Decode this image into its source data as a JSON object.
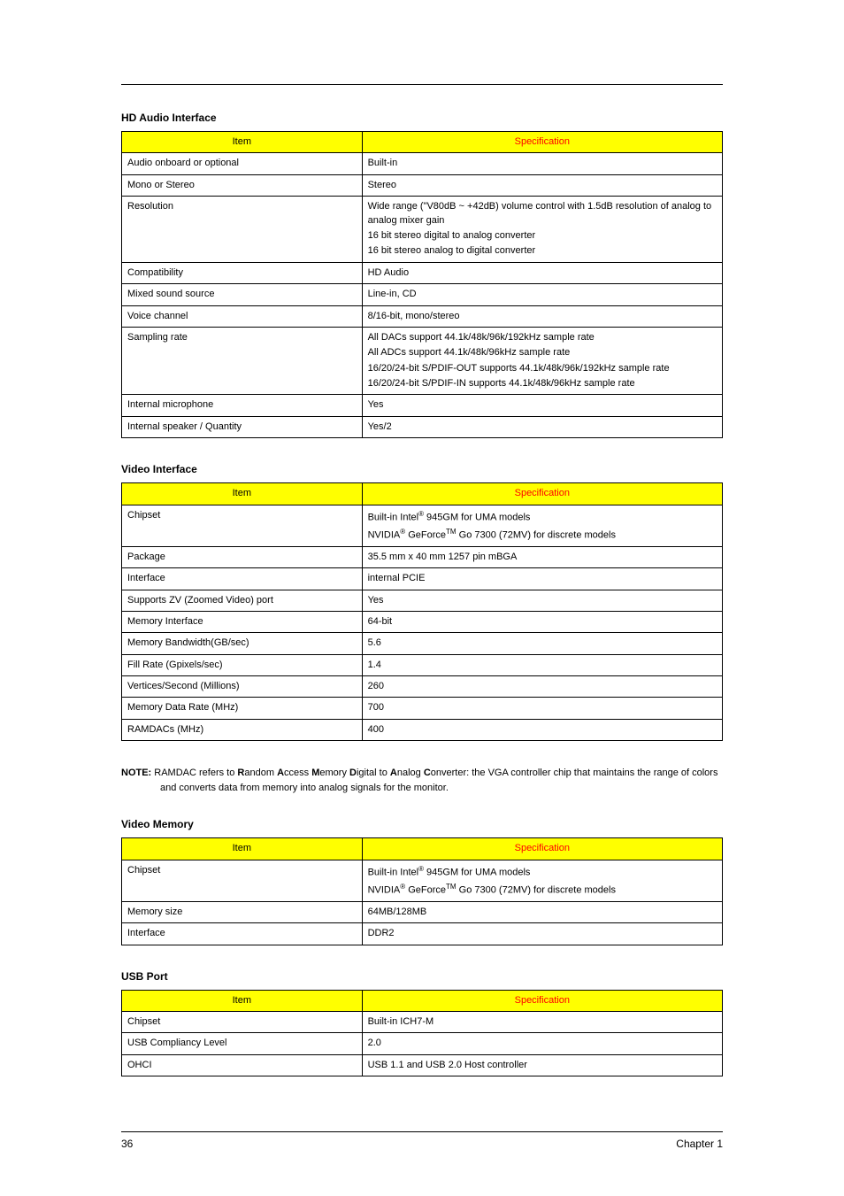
{
  "page": {
    "number": "36",
    "chapter": "Chapter 1"
  },
  "tables": {
    "hd_audio": {
      "title": "HD Audio Interface",
      "header_item": "Item",
      "header_spec": "Specification",
      "rows": [
        {
          "item": "Audio onboard or optional",
          "spec": "Built-in"
        },
        {
          "item": "Mono or Stereo",
          "spec": "Stereo"
        },
        {
          "item": "Resolution",
          "spec_lines": [
            "Wide range (\"V80dB ~ +42dB) volume control with 1.5dB resolution of analog to analog mixer gain",
            "16 bit stereo digital to analog converter",
            "16 bit stereo analog to digital converter"
          ]
        },
        {
          "item": "Compatibility",
          "spec": "HD Audio"
        },
        {
          "item": "Mixed sound source",
          "spec": "Line-in, CD"
        },
        {
          "item": "Voice channel",
          "spec": "8/16-bit, mono/stereo"
        },
        {
          "item": "Sampling rate",
          "spec_lines": [
            "All DACs support 44.1k/48k/96k/192kHz sample rate",
            "All ADCs support 44.1k/48k/96kHz sample rate",
            "16/20/24-bit S/PDIF-OUT supports 44.1k/48k/96k/192kHz sample rate",
            "16/20/24-bit S/PDIF-IN supports 44.1k/48k/96kHz sample rate"
          ]
        },
        {
          "item": "Internal microphone",
          "spec": "Yes"
        },
        {
          "item": "Internal speaker / Quantity",
          "spec": "Yes/2"
        }
      ]
    },
    "video_interface": {
      "title": "Video Interface",
      "header_item": "Item",
      "header_spec": "Specification",
      "rows": [
        {
          "item": "Chipset",
          "spec_html": true,
          "spec_lines": [
            "Built-in Intel<sup>®</sup> 945GM for UMA models",
            "NVIDIA<sup>®</sup> GeForce<sup>TM</sup> Go 7300 (72MV) for discrete models"
          ]
        },
        {
          "item": "Package",
          "spec": "35.5 mm x 40 mm 1257 pin mBGA"
        },
        {
          "item": "Interface",
          "spec": "internal PCIE"
        },
        {
          "item": "Supports ZV (Zoomed Video) port",
          "spec": "Yes"
        },
        {
          "item": "Memory Interface",
          "spec": "64-bit"
        },
        {
          "item": "Memory Bandwidth(GB/sec)",
          "spec": "5.6"
        },
        {
          "item": "Fill Rate (Gpixels/sec)",
          "spec": "1.4"
        },
        {
          "item": "Vertices/Second (Millions)",
          "spec": "260"
        },
        {
          "item": "Memory Data Rate (MHz)",
          "spec": "700"
        },
        {
          "item": "RAMDACs (MHz)",
          "spec": "400"
        }
      ]
    },
    "video_memory": {
      "title": "Video Memory",
      "header_item": "Item",
      "header_spec": "Specification",
      "rows": [
        {
          "item": "Chipset",
          "spec_html": true,
          "spec_lines": [
            "Built-in Intel<sup>®</sup> 945GM for UMA models",
            "NVIDIA<sup>®</sup> GeForce<sup>TM</sup> Go 7300 (72MV) for discrete models"
          ]
        },
        {
          "item": "Memory size",
          "spec": "64MB/128MB"
        },
        {
          "item": "Interface",
          "spec": "DDR2"
        }
      ]
    },
    "usb_port": {
      "title": "USB Port",
      "header_item": "Item",
      "header_spec": "Specification",
      "rows": [
        {
          "item": "Chipset",
          "spec": "Built-in ICH7-M"
        },
        {
          "item": "USB Compliancy Level",
          "spec": "2.0"
        },
        {
          "item": "OHCI",
          "spec": "USB 1.1 and USB 2.0 Host controller"
        }
      ]
    }
  },
  "note": {
    "prefix": "NOTE: ",
    "body_html": "RAMDAC refers to <b>R</b>andom <b>A</b>ccess <b>M</b>emory <b>D</b>igital to <b>A</b>nalog <b>C</b>onverter: the VGA controller chip that maintains the range of colors and converts data from memory into analog signals for the monitor."
  },
  "colors": {
    "header_bg": "#ffff00",
    "spec_header_text": "#ff0000"
  }
}
